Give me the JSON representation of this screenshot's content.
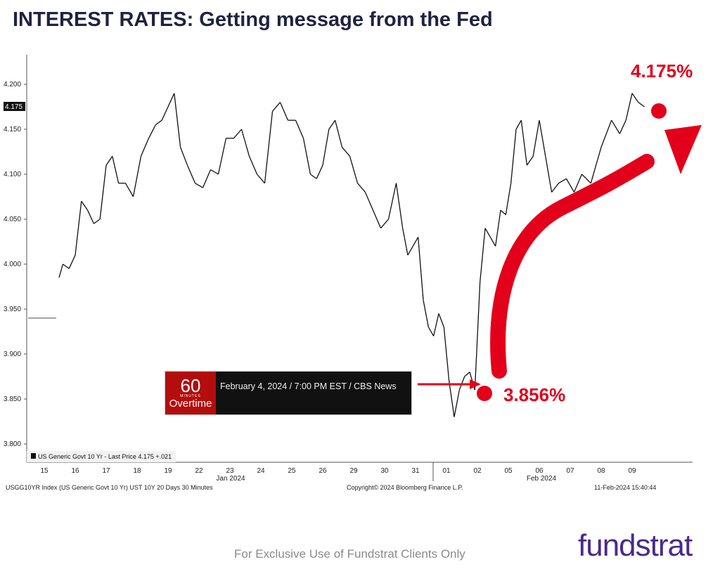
{
  "title": "INTEREST RATES: Getting message from the Fed",
  "chart_data": {
    "type": "line",
    "ylim": [
      3.8,
      4.2
    ],
    "yticks": [
      "4.200",
      "4.150",
      "4.100",
      "4.050",
      "4.000",
      "3.950",
      "3.900",
      "3.850",
      "3.800"
    ],
    "last_price_tag": "4.175",
    "x_tick_labels": [
      "15",
      "16",
      "17",
      "18",
      "19",
      "22",
      "23",
      "24",
      "25",
      "26",
      "29",
      "30",
      "31",
      "01",
      "02",
      "05",
      "06",
      "07",
      "08",
      "09"
    ],
    "month_labels": [
      "Jan 2024",
      "Feb 2024"
    ],
    "prior_level": 3.94,
    "series": [
      {
        "name": "US Generic Govt 10 Yr - Last Price",
        "points": [
          [
            "15",
            [
              3.985
            ]
          ],
          [
            "16",
            [
              4.0,
              3.995,
              4.01,
              4.07,
              4.06
            ]
          ],
          [
            "17",
            [
              4.045,
              4.05,
              4.11,
              4.12,
              4.09
            ]
          ],
          [
            "18",
            [
              4.09,
              4.075,
              4.12,
              4.14
            ]
          ],
          [
            "19",
            [
              4.155,
              4.16,
              4.175,
              4.19,
              4.13
            ]
          ],
          [
            "22",
            [
              4.11,
              4.09,
              4.085,
              4.105
            ]
          ],
          [
            "23",
            [
              4.1,
              4.14,
              4.14,
              4.15
            ]
          ],
          [
            "24",
            [
              4.12,
              4.1,
              4.09,
              4.17
            ]
          ],
          [
            "25",
            [
              4.18,
              4.16,
              4.16,
              4.14
            ]
          ],
          [
            "26",
            [
              4.1,
              4.095,
              4.11,
              4.15,
              4.16
            ]
          ],
          [
            "29",
            [
              4.13,
              4.12,
              4.09,
              4.08
            ]
          ],
          [
            "30",
            [
              4.06,
              4.04,
              4.05,
              4.09
            ]
          ],
          [
            "31",
            [
              4.04,
              4.01,
              4.02,
              4.03,
              3.96,
              3.93
            ]
          ],
          [
            "01",
            [
              3.92,
              3.945,
              3.93,
              3.87,
              3.83,
              3.86
            ]
          ],
          [
            "02",
            [
              3.875,
              3.88,
              3.86,
              3.98,
              4.04,
              4.03
            ]
          ],
          [
            "05",
            [
              4.02,
              4.06,
              4.055,
              4.09,
              4.15,
              4.16
            ]
          ],
          [
            "06",
            [
              4.11,
              4.12,
              4.16,
              4.12,
              4.08
            ]
          ],
          [
            "07",
            [
              4.09,
              4.095,
              4.08,
              4.1
            ]
          ],
          [
            "08",
            [
              4.09,
              4.13,
              4.16
            ]
          ],
          [
            "09",
            [
              4.145,
              4.16,
              4.19,
              4.18,
              4.175
            ]
          ]
        ]
      }
    ],
    "legend": {
      "text": "US Generic Govt 10 Yr - Last Price 4.175  +.021",
      "position": "bottom-left"
    },
    "annotations": [
      {
        "text": "4.175%",
        "value": 4.175,
        "color": "#e3001b"
      },
      {
        "text": "3.856%",
        "value": 3.856,
        "color": "#e3001b"
      }
    ]
  },
  "banner": {
    "logo_number": "60",
    "logo_small": "MINUTES",
    "logo_word": "Overtime",
    "text": "February 4, 2024 / 7:00 PM EST / CBS News"
  },
  "footer": {
    "index": "USGG10YR Index (US Generic Govt 10 Yr) UST 10Y 20 Days 30 Minutes",
    "copyright": "Copyright© 2024 Bloomberg Finance L.P.",
    "timestamp": "11-Feb-2024 15:40:44"
  },
  "exclusive": "For Exclusive Use of Fundstrat Clients Only",
  "brand": "fundstrat"
}
